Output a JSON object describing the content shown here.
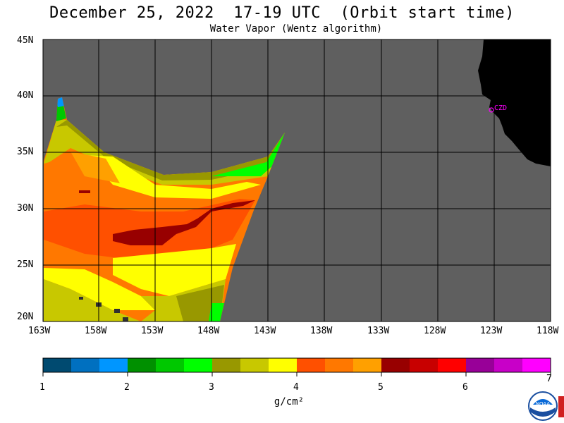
{
  "title": "December 25, 2022  17-19 UTC  (Orbit start time)",
  "subtitle": "Water Vapor (Wentz algorithm)",
  "lat_labels": [
    "45N",
    "40N",
    "35N",
    "30N",
    "25N",
    "20N"
  ],
  "lon_labels": [
    "163W",
    "158W",
    "153W",
    "148W",
    "143W",
    "138W",
    "133W",
    "128W",
    "123W",
    "118W"
  ],
  "station_label": "CZD",
  "colorbar": {
    "unit": "g/cm²",
    "tick_labels": [
      "1",
      "2",
      "3",
      "4",
      "5",
      "6",
      "7"
    ],
    "colors": [
      "#004a70",
      "#0070c0",
      "#0096ff",
      "#009000",
      "#00c800",
      "#00ff00",
      "#989800",
      "#c8c800",
      "#ffff00",
      "#ff5000",
      "#ff7800",
      "#ffa000",
      "#980000",
      "#c80000",
      "#ff0000",
      "#980098",
      "#c800c8",
      "#ff00ff"
    ]
  },
  "colors": {
    "no_data": "#5f5f5f",
    "land": "#000000",
    "grid": "#000000",
    "station": "#ff00ff"
  },
  "logo_icon": "noaa-logo-icon"
}
